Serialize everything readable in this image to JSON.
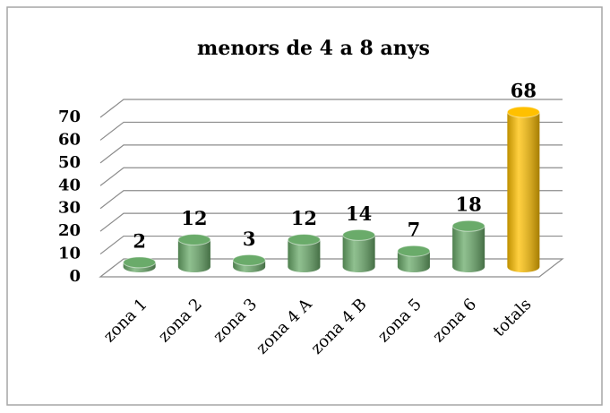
{
  "chart_data": {
    "type": "bar3d",
    "title": "menors de 4 a 8 anys",
    "categories": [
      "zona 1",
      "zona 2",
      "zona 3",
      "zona 4 A",
      "zona 4 B",
      "zona 5",
      "zona 6",
      "totals"
    ],
    "values": [
      2,
      12,
      3,
      12,
      14,
      7,
      18,
      68
    ],
    "colors": [
      "#6aab6a",
      "#6aab6a",
      "#6aab6a",
      "#6aab6a",
      "#6aab6a",
      "#6aab6a",
      "#6aab6a",
      "#ffc000"
    ],
    "ylim": [
      0,
      70
    ],
    "yticks": [
      0,
      10,
      20,
      30,
      40,
      50,
      60,
      70
    ],
    "grid": true
  }
}
